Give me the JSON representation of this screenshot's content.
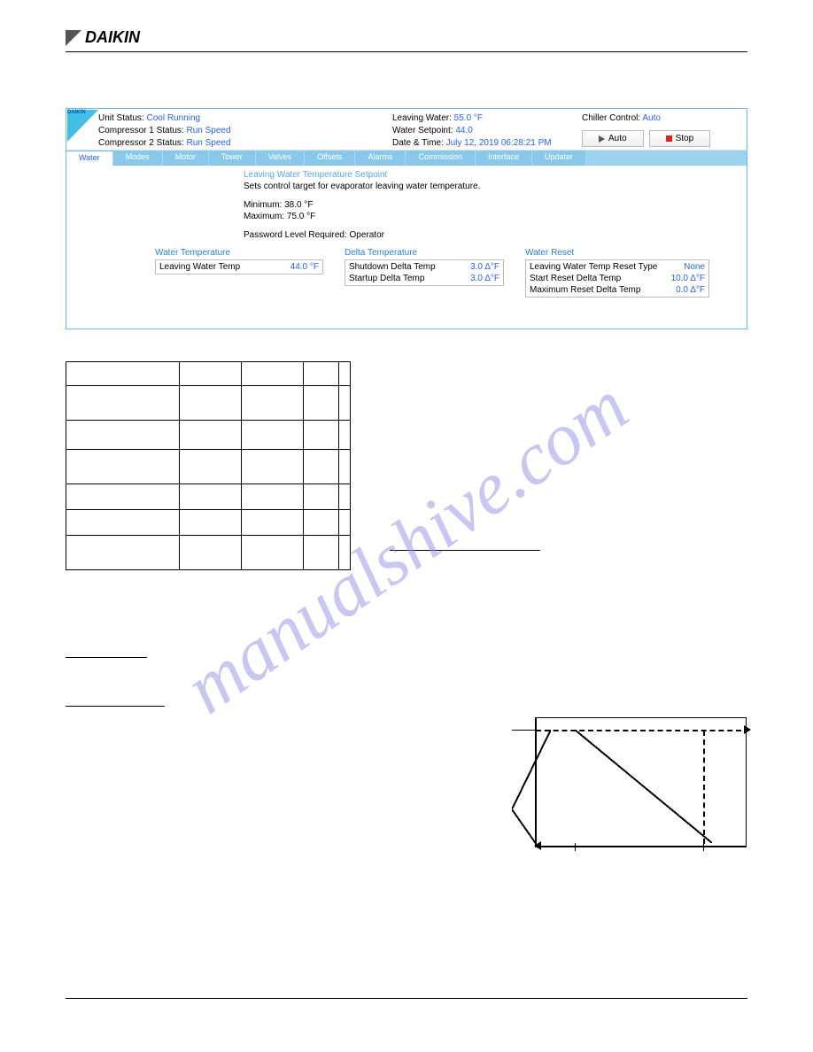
{
  "logo": "DAIKIN",
  "watermark": "manualshive.com",
  "status_bar": {
    "left": [
      {
        "label": "Unit Status:",
        "value": "Cool Running"
      },
      {
        "label": "Compressor 1 Status:",
        "value": "Run Speed"
      },
      {
        "label": "Compressor 2 Status:",
        "value": "Run Speed"
      }
    ],
    "mid": [
      {
        "label": "Leaving Water:",
        "value": "55.0 °F"
      },
      {
        "label": "Water Setpoint:",
        "value": "44.0"
      },
      {
        "label": "Date & Time:",
        "value": "July 12, 2019  06:28:21 PM"
      }
    ],
    "chiller_label": "Chiller Control:",
    "chiller_value": "Auto",
    "btn_auto": "Auto",
    "btn_stop": "Stop"
  },
  "tabs": [
    "Water",
    "Modes",
    "Motor",
    "Tower",
    "Valves",
    "Offsets",
    "Alarms",
    "Commission",
    "Interface",
    "Updater"
  ],
  "info": {
    "title": "Leaving Water Temperature Setpoint",
    "desc": "Sets control target for evaporator leaving water temperature.",
    "min": "Minimum: 38.0 °F",
    "max": "Maximum: 75.0 °F",
    "pwd": "Password Level Required: Operator"
  },
  "panels": {
    "water": {
      "title": "Water Temperature",
      "rows": [
        {
          "k": "Leaving Water Temp",
          "v": "44.0 °F"
        }
      ]
    },
    "delta": {
      "title": "Delta Temperature",
      "rows": [
        {
          "k": "Shutdown Delta Temp",
          "v": "3.0 Δ°F"
        },
        {
          "k": "Startup Delta Temp",
          "v": "3.0 Δ°F"
        }
      ]
    },
    "reset": {
      "title": "Water Reset",
      "rows": [
        {
          "k": "Leaving Water Temp Reset Type",
          "v": "None"
        },
        {
          "k": "Start Reset Delta Temp",
          "v": "10.0 Δ°F"
        },
        {
          "k": "Maximum Reset Delta Temp",
          "v": "0.0 Δ°F"
        }
      ]
    }
  },
  "table": {
    "cols": [
      120,
      64,
      64,
      34,
      460
    ],
    "rows": [
      [
        "",
        "",
        "",
        "",
        ""
      ],
      [
        "",
        "",
        "",
        "",
        ""
      ],
      [
        "",
        "",
        "",
        "",
        ""
      ],
      [
        "",
        "",
        "",
        "",
        ""
      ],
      [
        "",
        "",
        "",
        "",
        ""
      ],
      [
        "",
        "",
        "",
        "",
        ""
      ],
      [
        "",
        "",
        "",
        "",
        ""
      ]
    ]
  }
}
